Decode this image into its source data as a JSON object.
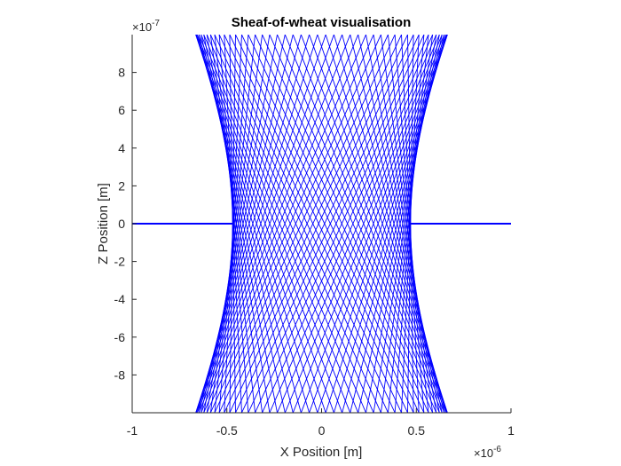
{
  "chart_data": {
    "type": "line",
    "title": "Sheaf-of-wheat visualisation",
    "xlabel": "X Position [m]",
    "ylabel": "Z Position [m]",
    "xlim": [
      -1e-06,
      1e-06
    ],
    "ylim": [
      -1e-06,
      1e-06
    ],
    "x_ticks": [
      -1,
      -0.5,
      0,
      0.5,
      1
    ],
    "x_tick_labels": [
      "-1",
      "-0.5",
      "0",
      "0.5",
      "1"
    ],
    "x_exponent_base": "×10",
    "x_exponent_power": "-6",
    "y_ticks": [
      -8,
      -6,
      -4,
      -2,
      0,
      2,
      4,
      6,
      8
    ],
    "y_tick_labels": [
      "-8",
      "-6",
      "-4",
      "-2",
      "0",
      "2",
      "4",
      "6",
      "8"
    ],
    "y_exponent_base": "×10",
    "y_exponent_power": "-7",
    "grid": false,
    "legend": "none",
    "line_color": "#0000ff",
    "series_description": {
      "waist_radius": 4.7e-07,
      "rayleigh_range": 1e-06,
      "ray_count_per_side": 24,
      "focus_z": 0
    },
    "axis_line_color": "#262626"
  }
}
